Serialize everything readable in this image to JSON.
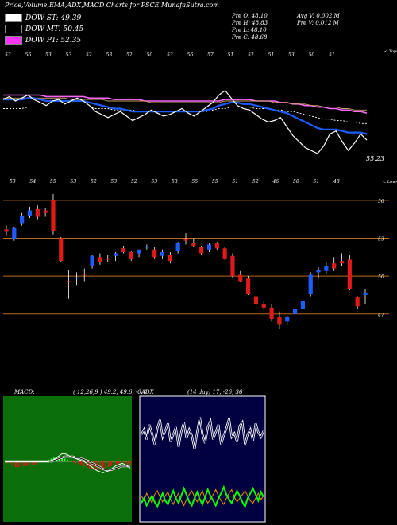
{
  "header": {
    "title": "Price,Volume,EMA,ADX,MACD Charts for PSCE MunafaSutra.com",
    "legend": [
      {
        "label": "DOW ST: 49.39",
        "color": "#ffffff"
      },
      {
        "label": "DOW MT: 50.45",
        "color": "#000000"
      },
      {
        "label": "DOW PT: 52.35",
        "color": "#ff33ff"
      }
    ],
    "info_left": [
      "Pre  O: 48.10",
      "Pre  H: 48.83",
      "Pre  L: 48.10",
      "Pre  C: 48.68"
    ],
    "info_right": [
      "Avg V: 0.002  M",
      "Pre  V: 0.012  M"
    ]
  },
  "colors": {
    "bull": "#1e5cff",
    "bear": "#e01919",
    "ema_blue": "#1e5cff",
    "ema_pink": "#ff66ff",
    "grid_orange": "#b86a1a",
    "macd_bg": "#0a6e0a",
    "adx_bg": "#000040"
  },
  "chart_data": [
    {
      "type": "line",
      "name": "ema-panel",
      "top_labels": [
        "53",
        "56",
        "53",
        "53",
        "52",
        "53",
        "52",
        "50",
        "53",
        "56",
        "57",
        "51",
        "52",
        "51",
        "53",
        "50",
        "51"
      ],
      "top_right_label": "< Tops",
      "bottom_labels": [
        "53",
        "54",
        "55",
        "53",
        "52",
        "53",
        "52",
        "53",
        "53",
        "55",
        "55",
        "51",
        "52",
        "46",
        "50",
        "51",
        "48"
      ],
      "bottom_right_label": "< Lows",
      "last_value_label": "55.23",
      "series": [
        {
          "values": [
            51.0,
            51.2,
            50.9,
            51.1,
            51.3,
            51.0,
            50.8,
            50.6,
            50.9,
            51.0,
            50.7,
            50.9,
            51.1,
            50.9,
            50.6,
            50.2,
            50.0,
            49.8,
            50.0,
            50.2,
            49.9,
            49.6,
            49.8,
            50.0,
            50.3,
            50.1,
            49.9,
            50.0,
            50.2,
            50.4,
            50.1,
            49.9,
            50.2,
            50.5,
            50.8,
            51.3,
            51.6,
            51.1,
            50.6,
            50.4,
            50.3,
            50.0,
            49.7,
            49.5,
            49.6,
            49.8,
            49.2,
            48.6,
            48.2,
            47.8,
            47.6,
            47.4,
            47.9,
            48.7,
            48.9,
            48.2,
            47.6,
            48.1,
            48.7,
            48.3
          ]
        },
        {
          "values": [
            51.0,
            51.0,
            51.0,
            51.0,
            51.1,
            51.1,
            51.0,
            50.9,
            50.9,
            50.9,
            50.9,
            50.9,
            50.9,
            50.9,
            50.8,
            50.7,
            50.6,
            50.5,
            50.4,
            50.4,
            50.3,
            50.2,
            50.2,
            50.2,
            50.2,
            50.2,
            50.2,
            50.2,
            50.2,
            50.2,
            50.2,
            50.2,
            50.2,
            50.3,
            50.4,
            50.6,
            50.7,
            50.8,
            50.8,
            50.7,
            50.7,
            50.6,
            50.5,
            50.4,
            50.3,
            50.2,
            50.1,
            49.9,
            49.7,
            49.5,
            49.3,
            49.1,
            49.0,
            49.0,
            49.0,
            48.9,
            48.8,
            48.8,
            48.8,
            48.7
          ]
        },
        {
          "values": [
            50.4,
            50.4,
            50.4,
            50.4,
            50.5,
            50.5,
            50.5,
            50.5,
            50.5,
            50.5,
            50.5,
            50.5,
            50.5,
            50.5,
            50.5,
            50.4,
            50.4,
            50.4,
            50.3,
            50.3,
            50.3,
            50.3,
            50.2,
            50.2,
            50.2,
            50.2,
            50.2,
            50.2,
            50.2,
            50.2,
            50.2,
            50.2,
            50.2,
            50.2,
            50.3,
            50.4,
            50.4,
            50.5,
            50.5,
            50.5,
            50.5,
            50.4,
            50.4,
            50.4,
            50.3,
            50.3,
            50.2,
            50.2,
            50.1,
            50.0,
            49.9,
            49.8,
            49.7,
            49.7,
            49.6,
            49.6,
            49.5,
            49.5,
            49.4,
            49.4
          ]
        },
        {
          "values": [
            51.3,
            51.3,
            51.3,
            51.3,
            51.3,
            51.3,
            51.3,
            51.2,
            51.2,
            51.2,
            51.2,
            51.2,
            51.2,
            51.2,
            51.1,
            51.1,
            51.1,
            51.1,
            51.0,
            51.0,
            51.0,
            51.0,
            51.0,
            50.9,
            50.9,
            50.9,
            50.9,
            50.9,
            50.9,
            50.9,
            50.9,
            50.9,
            50.9,
            50.9,
            50.9,
            50.9,
            51.0,
            51.0,
            51.0,
            51.0,
            51.0,
            50.9,
            50.9,
            50.9,
            50.9,
            50.8,
            50.8,
            50.7,
            50.7,
            50.6,
            50.6,
            50.5,
            50.5,
            50.4,
            50.4,
            50.3,
            50.3,
            50.2,
            50.2,
            50.1
          ]
        },
        {
          "values": [
            51.1,
            51.1,
            51.1,
            51.1,
            51.1,
            51.1,
            51.1,
            51.1,
            51.1,
            51.1,
            51.1,
            51.0,
            51.0,
            51.0,
            51.0,
            51.0,
            51.0,
            50.9,
            50.9,
            50.9,
            50.9,
            50.9,
            50.9,
            50.9,
            50.8,
            50.8,
            50.8,
            50.8,
            50.8,
            50.8,
            50.8,
            50.8,
            50.8,
            50.8,
            50.8,
            50.8,
            50.9,
            50.9,
            50.9,
            50.9,
            50.9,
            50.9,
            50.9,
            50.9,
            50.8,
            50.8,
            50.8,
            50.7,
            50.7,
            50.7,
            50.6,
            50.6,
            50.5,
            50.5,
            50.5,
            50.4,
            50.4,
            50.3,
            50.3,
            50.3
          ]
        }
      ]
    },
    {
      "type": "candlestick",
      "name": "price-panel",
      "price_labels": [
        "56",
        "53",
        "50",
        "47"
      ],
      "price_levels": [
        56,
        53,
        50,
        47
      ],
      "ylim": [
        41,
        57
      ],
      "candles": [
        [
          53.7,
          54.0,
          53.2,
          53.5
        ],
        [
          52.9,
          53.9,
          52.8,
          53.8
        ],
        [
          54.2,
          55.0,
          54.0,
          54.8
        ],
        [
          54.8,
          55.5,
          54.6,
          55.2
        ],
        [
          55.3,
          55.6,
          54.5,
          54.7
        ],
        [
          55.2,
          55.4,
          54.7,
          55.0
        ],
        [
          56.0,
          56.5,
          53.3,
          53.6
        ],
        [
          53.0,
          53.1,
          51.1,
          51.2
        ],
        [
          49.6,
          50.5,
          48.2,
          49.5
        ],
        [
          49.8,
          50.3,
          49.3,
          49.9
        ],
        [
          50.2,
          50.6,
          49.6,
          50.1
        ],
        [
          50.8,
          51.7,
          50.6,
          51.6
        ],
        [
          51.5,
          51.8,
          50.9,
          51.1
        ],
        [
          51.4,
          51.7,
          51.1,
          51.3
        ],
        [
          51.6,
          51.9,
          51.2,
          51.8
        ],
        [
          52.2,
          52.4,
          51.8,
          51.9
        ],
        [
          51.9,
          52.0,
          51.2,
          51.4
        ],
        [
          51.8,
          52.1,
          51.5,
          52.1
        ],
        [
          52.3,
          52.5,
          52.1,
          52.3
        ],
        [
          52.1,
          52.3,
          51.4,
          51.5
        ],
        [
          51.6,
          52.1,
          51.4,
          51.9
        ],
        [
          51.7,
          51.9,
          51.0,
          51.2
        ],
        [
          52.0,
          52.7,
          51.8,
          52.6
        ],
        [
          52.9,
          53.4,
          52.5,
          52.8
        ],
        [
          52.6,
          53.0,
          52.3,
          52.4
        ],
        [
          52.3,
          52.4,
          51.7,
          51.8
        ],
        [
          52.1,
          52.6,
          51.9,
          52.5
        ],
        [
          52.6,
          52.7,
          52.1,
          52.2
        ],
        [
          52.2,
          52.3,
          51.3,
          51.4
        ],
        [
          51.6,
          51.8,
          49.9,
          50.0
        ],
        [
          50.1,
          50.4,
          49.5,
          49.6
        ],
        [
          49.8,
          50.0,
          48.5,
          48.6
        ],
        [
          48.4,
          48.6,
          47.7,
          47.8
        ],
        [
          47.8,
          48.0,
          47.3,
          47.5
        ],
        [
          47.5,
          47.8,
          46.4,
          46.6
        ],
        [
          46.8,
          47.2,
          45.8,
          46.2
        ],
        [
          46.4,
          46.9,
          46.1,
          46.8
        ],
        [
          47.0,
          47.6,
          46.6,
          47.4
        ],
        [
          47.4,
          48.2,
          47.1,
          48.0
        ],
        [
          48.6,
          50.3,
          48.4,
          50.1
        ],
        [
          50.3,
          50.7,
          49.8,
          50.5
        ],
        [
          50.4,
          51.1,
          50.2,
          50.8
        ],
        [
          51.0,
          51.5,
          50.4,
          50.6
        ],
        [
          51.2,
          51.8,
          50.8,
          51.0
        ],
        [
          51.3,
          51.7,
          48.9,
          49.0
        ],
        [
          48.3,
          48.4,
          47.4,
          47.6
        ],
        [
          48.5,
          49.0,
          47.8,
          48.7
        ]
      ]
    },
    {
      "type": "line",
      "name": "macd-panel",
      "title": "MACD:",
      "params": "( 12,26,9 ) 49.2,  49.6,  -0.4",
      "series": [
        {
          "values": [
            0.0,
            0.0,
            0.0,
            0.0,
            0.0,
            0.0,
            0.0,
            0.0,
            0.0,
            0.0,
            0.0,
            0.0,
            0.0,
            0.0,
            0.0,
            0.0,
            0.0,
            0.01,
            0.02,
            0.04,
            0.06,
            0.08,
            0.08,
            0.07,
            0.05,
            0.04,
            0.03,
            0.02,
            0.01,
            0.0,
            -0.02,
            -0.04,
            -0.06,
            -0.08,
            -0.1,
            -0.11,
            -0.12,
            -0.11,
            -0.1,
            -0.08,
            -0.06,
            -0.04,
            -0.03,
            -0.02,
            -0.03,
            -0.05,
            -0.07
          ]
        },
        {
          "values": [
            0.0,
            0.0,
            0.0,
            0.0,
            0.0,
            0.0,
            0.0,
            0.0,
            0.0,
            0.0,
            0.0,
            0.0,
            0.0,
            0.0,
            0.0,
            0.0,
            0.0,
            0.0,
            0.01,
            0.02,
            0.03,
            0.04,
            0.05,
            0.05,
            0.05,
            0.05,
            0.04,
            0.04,
            0.03,
            0.02,
            0.01,
            0.0,
            -0.02,
            -0.03,
            -0.05,
            -0.06,
            -0.08,
            -0.09,
            -0.09,
            -0.09,
            -0.08,
            -0.07,
            -0.06,
            -0.05,
            -0.05,
            -0.05,
            -0.05
          ]
        }
      ],
      "histogram": [
        0.0,
        -0.02,
        -0.04,
        -0.05,
        -0.06,
        -0.06,
        -0.06,
        -0.05,
        -0.05,
        -0.04,
        -0.04,
        -0.03,
        -0.02,
        -0.01,
        0.0,
        0.01,
        0.02,
        0.03,
        0.04,
        0.05,
        0.05,
        0.04,
        0.03,
        0.02,
        0.0,
        -0.01,
        -0.02,
        -0.03,
        -0.04,
        -0.05,
        -0.06,
        -0.07,
        -0.08,
        -0.08,
        -0.09,
        -0.09,
        -0.08,
        -0.07,
        -0.06,
        -0.05,
        -0.04,
        -0.03,
        -0.02,
        -0.01,
        -0.02,
        -0.03,
        -0.04
      ]
    },
    {
      "type": "line",
      "name": "adx-panel",
      "title": "ADX",
      "params": "(14  day) 17,  -26,  36",
      "series": [
        {
          "values": [
            70,
            74,
            66,
            78,
            71,
            62,
            75,
            82,
            68,
            73,
            79,
            64,
            70,
            76,
            60,
            72,
            80,
            67,
            74,
            69,
            58,
            72,
            84,
            70,
            63,
            76,
            81,
            66,
            72,
            78,
            62,
            69,
            75,
            83,
            68,
            71,
            64,
            77,
            80,
            62,
            70,
            74,
            65,
            79,
            72,
            68,
            73
          ]
        },
        {
          "values": [
            14,
            18,
            12,
            16,
            20,
            15,
            11,
            17,
            22,
            16,
            13,
            19,
            24,
            18,
            14,
            20,
            26,
            21,
            15,
            12,
            18,
            23,
            17,
            13,
            19,
            25,
            20,
            16,
            12,
            18,
            22,
            27,
            21,
            17,
            14,
            19,
            24,
            20,
            15,
            11,
            18,
            22,
            26,
            21,
            16,
            23,
            19
          ]
        },
        {
          "values": [
            20,
            16,
            22,
            18,
            14,
            21,
            24,
            19,
            15,
            20,
            23,
            17,
            13,
            18,
            22,
            16,
            12,
            17,
            21,
            24,
            19,
            15,
            20,
            24,
            18,
            14,
            17,
            21,
            25,
            20,
            16,
            13,
            18,
            22,
            25,
            19,
            15,
            18,
            21,
            24,
            20,
            16,
            14,
            18,
            22,
            17,
            20
          ]
        }
      ]
    }
  ]
}
